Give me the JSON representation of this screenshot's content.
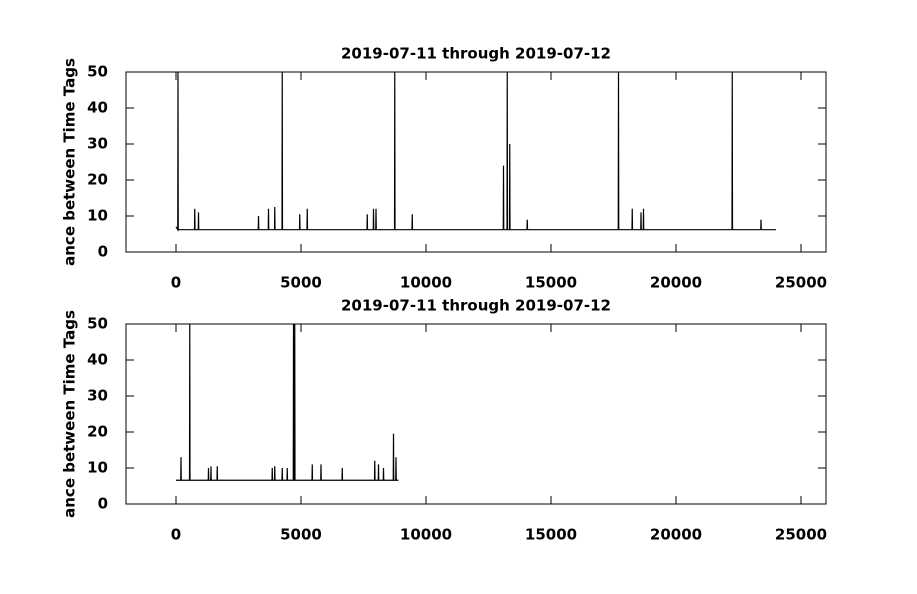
{
  "chart_data": [
    {
      "type": "line",
      "title": "2019-07-11 through 2019-07-12",
      "y_label": "ance between Time Tags",
      "color": "#000000",
      "x": [
        0,
        70,
        80,
        90,
        740,
        750,
        760,
        890,
        900,
        910,
        3290,
        3300,
        3310,
        3690,
        3700,
        3710,
        3940,
        3950,
        3960,
        4240,
        4250,
        4260,
        4940,
        4950,
        4960,
        5240,
        5250,
        5260,
        7640,
        7650,
        7660,
        7890,
        7900,
        7910,
        7990,
        8000,
        8010,
        8740,
        8750,
        8760,
        9440,
        9450,
        9460,
        13090,
        13100,
        13110,
        13240,
        13250,
        13260,
        13340,
        13350,
        13360,
        14040,
        14050,
        14060,
        17690,
        17700,
        17710,
        18240,
        18250,
        18260,
        18590,
        18600,
        18610,
        18690,
        18700,
        18710,
        22240,
        22250,
        22260,
        23390,
        23400,
        23410,
        24000
      ],
      "values": [
        7,
        6.2,
        50,
        6.2,
        6.2,
        12,
        6.2,
        6.2,
        11,
        6.2,
        6.2,
        10,
        6.2,
        6.2,
        12,
        6.2,
        6.2,
        12.5,
        6.2,
        6.2,
        50,
        6.2,
        6.2,
        10.5,
        6.2,
        6.2,
        12,
        6.2,
        6.2,
        10.5,
        6.2,
        6.2,
        12,
        6.2,
        6.2,
        12,
        6.2,
        6.2,
        50,
        6.2,
        6.2,
        10.5,
        6.2,
        6.2,
        24,
        6.2,
        6.2,
        50,
        6.2,
        6.2,
        30,
        6.2,
        6.2,
        9,
        6.2,
        6.2,
        50,
        6.2,
        6.2,
        12,
        6.2,
        6.2,
        11,
        6.2,
        6.2,
        12,
        6.2,
        6.2,
        50,
        6.2,
        6.2,
        9,
        6.2,
        6.2
      ],
      "xlim": [
        -2000,
        26000
      ],
      "xticks": [
        0,
        5000,
        10000,
        15000,
        20000,
        25000
      ],
      "ylim": [
        0,
        50
      ],
      "yticks": [
        0,
        10,
        20,
        30,
        40,
        50
      ]
    },
    {
      "type": "line",
      "title": "2019-07-11 through 2019-07-12",
      "y_label": "ance between Time Tags",
      "color": "#000000",
      "x": [
        0,
        190,
        200,
        210,
        540,
        550,
        560,
        1290,
        1300,
        1310,
        1390,
        1400,
        1410,
        1640,
        1650,
        1660,
        3840,
        3850,
        3860,
        3940,
        3950,
        3960,
        4240,
        4250,
        4260,
        4440,
        4450,
        4460,
        4690,
        4700,
        4710,
        4740,
        4750,
        4760,
        5440,
        5450,
        5460,
        5790,
        5800,
        5810,
        6640,
        6650,
        6660,
        7940,
        7950,
        7960,
        8090,
        8100,
        8110,
        8290,
        8300,
        8310,
        8690,
        8700,
        8710,
        8790,
        8800,
        8810,
        8900
      ],
      "values": [
        6.6,
        6.6,
        13,
        6.6,
        6.6,
        50,
        6.6,
        6.6,
        10,
        6.6,
        6.6,
        10.5,
        6.6,
        6.6,
        10.5,
        6.6,
        6.6,
        10,
        6.6,
        6.6,
        10.5,
        6.6,
        6.6,
        10,
        6.6,
        6.6,
        10,
        6.6,
        6.6,
        50,
        6.6,
        6.6,
        50,
        6.6,
        6.6,
        11,
        6.6,
        6.6,
        11,
        6.6,
        6.6,
        10,
        6.6,
        6.6,
        12,
        6.6,
        6.6,
        11,
        6.6,
        6.6,
        10,
        6.6,
        6.6,
        19.5,
        6.6,
        6.6,
        13,
        6.6,
        6.6
      ],
      "xlim": [
        -2000,
        26000
      ],
      "xticks": [
        0,
        5000,
        10000,
        15000,
        20000,
        25000
      ],
      "ylim": [
        0,
        50
      ],
      "yticks": [
        0,
        10,
        20,
        30,
        40,
        50
      ]
    }
  ]
}
